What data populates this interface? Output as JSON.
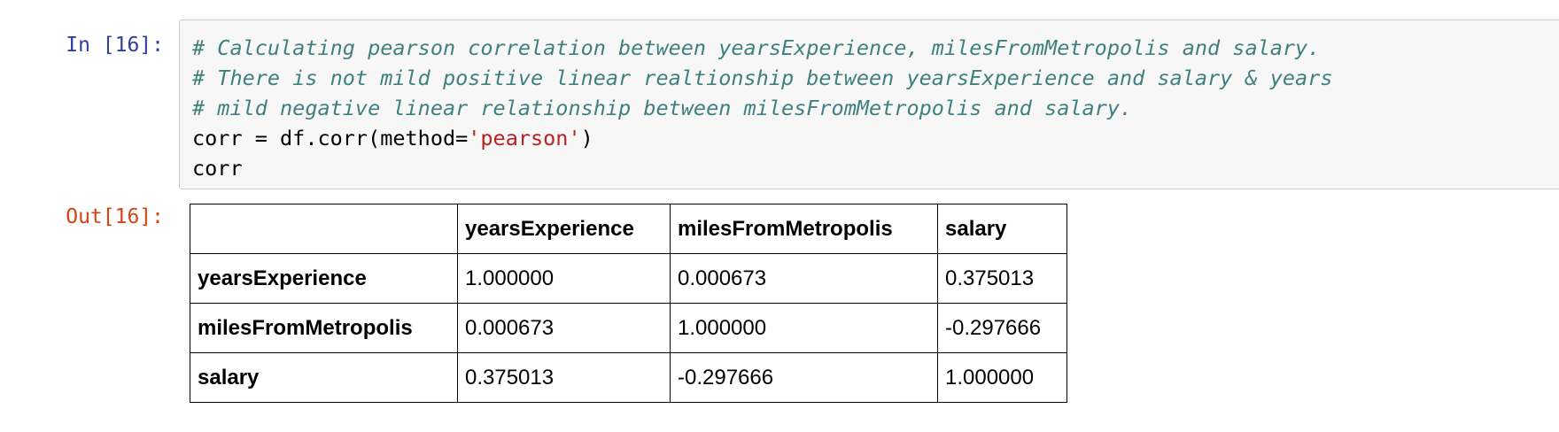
{
  "cell": {
    "in_prompt": "In [16]:",
    "out_prompt": "Out[16]:",
    "code": {
      "comment1": "# Calculating pearson correlation between yearsExperience, milesFromMetropolis and salary.",
      "comment2": "# There is not mild positive linear realtionship between yearsExperience and salary & years",
      "comment3": "# mild negative linear relationship between milesFromMetropolis and salary.",
      "line4_prefix": "corr = df.corr(method=",
      "line4_string": "'pearson'",
      "line4_suffix": ")",
      "line5": "corr"
    }
  },
  "table": {
    "columns": [
      "",
      "yearsExperience",
      "milesFromMetropolis",
      "salary"
    ],
    "rows": [
      {
        "label": "yearsExperience",
        "values": [
          "1.000000",
          "0.000673",
          "0.375013"
        ]
      },
      {
        "label": "milesFromMetropolis",
        "values": [
          "0.000673",
          "1.000000",
          "-0.297666"
        ]
      },
      {
        "label": "salary",
        "values": [
          "0.375013",
          "-0.297666",
          "1.000000"
        ]
      }
    ]
  },
  "colors": {
    "in_prompt": "#303F9F",
    "out_prompt": "#D84315",
    "comment": "#408080",
    "string": "#BA2121",
    "input_background": "#f7f7f7"
  }
}
